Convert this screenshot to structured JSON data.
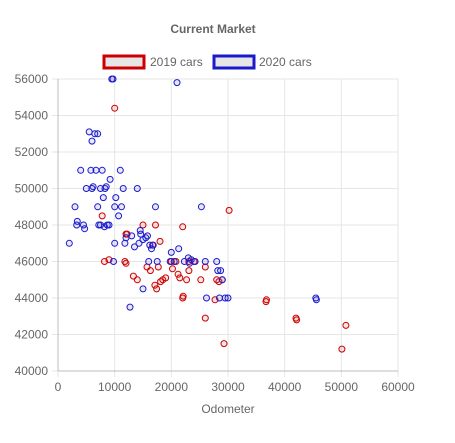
{
  "chart_data": {
    "type": "scatter",
    "title": "Current Market",
    "xlabel": "Odometer",
    "ylabel": "",
    "xlim": [
      0,
      60000
    ],
    "ylim": [
      40000,
      56000
    ],
    "xticks": [
      0,
      10000,
      20000,
      30000,
      40000,
      50000,
      60000
    ],
    "yticks": [
      40000,
      42000,
      44000,
      46000,
      48000,
      50000,
      52000,
      54000,
      56000
    ],
    "grid": true,
    "legend_position": "top",
    "series": [
      {
        "name": "2019 cars",
        "color": "#cc0000",
        "fill": "rgba(204,0,0,0.1)",
        "points": [
          [
            7800,
            48500
          ],
          [
            8200,
            46000
          ],
          [
            9000,
            46100
          ],
          [
            10000,
            54400
          ],
          [
            11800,
            46000
          ],
          [
            12000,
            45900
          ],
          [
            12000,
            47500
          ],
          [
            12200,
            47500
          ],
          [
            13300,
            45200
          ],
          [
            14000,
            45000
          ],
          [
            15000,
            48000
          ],
          [
            15700,
            45700
          ],
          [
            16300,
            45500
          ],
          [
            16700,
            46900
          ],
          [
            17100,
            44700
          ],
          [
            17400,
            44500
          ],
          [
            17200,
            48000
          ],
          [
            17700,
            45700
          ],
          [
            18000,
            47100
          ],
          [
            18100,
            44900
          ],
          [
            18500,
            45000
          ],
          [
            19000,
            45100
          ],
          [
            20000,
            46000
          ],
          [
            20200,
            45600
          ],
          [
            20800,
            46000
          ],
          [
            21200,
            45300
          ],
          [
            21500,
            45100
          ],
          [
            22000,
            47900
          ],
          [
            22000,
            44000
          ],
          [
            22100,
            44100
          ],
          [
            22700,
            45000
          ],
          [
            23100,
            45500
          ],
          [
            23100,
            46000
          ],
          [
            24000,
            46000
          ],
          [
            25200,
            45000
          ],
          [
            26000,
            45700
          ],
          [
            26000,
            42900
          ],
          [
            27700,
            43900
          ],
          [
            28000,
            45000
          ],
          [
            28400,
            44900
          ],
          [
            29000,
            45000
          ],
          [
            29300,
            41500
          ],
          [
            30200,
            48800
          ],
          [
            36700,
            43800
          ],
          [
            36800,
            43900
          ],
          [
            42000,
            42900
          ],
          [
            42100,
            42800
          ],
          [
            50100,
            41200
          ],
          [
            50800,
            42500
          ]
        ]
      },
      {
        "name": "2020 cars",
        "color": "#1a1acc",
        "fill": "rgba(26,26,204,0.1)",
        "points": [
          [
            2000,
            47000
          ],
          [
            3000,
            49000
          ],
          [
            3300,
            48000
          ],
          [
            3400,
            48200
          ],
          [
            4000,
            51000
          ],
          [
            4500,
            48000
          ],
          [
            4700,
            47800
          ],
          [
            5000,
            50000
          ],
          [
            5500,
            53100
          ],
          [
            5800,
            51000
          ],
          [
            6000,
            52600
          ],
          [
            6000,
            50000
          ],
          [
            6200,
            50100
          ],
          [
            6500,
            53000
          ],
          [
            6700,
            51000
          ],
          [
            7000,
            53000
          ],
          [
            7000,
            49000
          ],
          [
            7200,
            48000
          ],
          [
            7500,
            50000
          ],
          [
            7800,
            51000
          ],
          [
            7500,
            48000
          ],
          [
            8000,
            49500
          ],
          [
            8200,
            47900
          ],
          [
            8300,
            50000
          ],
          [
            8500,
            50100
          ],
          [
            8700,
            48000
          ],
          [
            9000,
            48000
          ],
          [
            9200,
            50500
          ],
          [
            9500,
            56000
          ],
          [
            9700,
            56000
          ],
          [
            9800,
            46000
          ],
          [
            10000,
            49000
          ],
          [
            10000,
            47000
          ],
          [
            10200,
            49500
          ],
          [
            10700,
            48500
          ],
          [
            11000,
            51000
          ],
          [
            11200,
            49000
          ],
          [
            11500,
            50000
          ],
          [
            11800,
            47000
          ],
          [
            12000,
            47300
          ],
          [
            12700,
            43500
          ],
          [
            13000,
            47400
          ],
          [
            13500,
            46800
          ],
          [
            14000,
            50000
          ],
          [
            14300,
            47000
          ],
          [
            14500,
            47700
          ],
          [
            14600,
            47500
          ],
          [
            15000,
            47200
          ],
          [
            15000,
            44500
          ],
          [
            15500,
            47300
          ],
          [
            15800,
            47400
          ],
          [
            16000,
            46000
          ],
          [
            16200,
            46900
          ],
          [
            16500,
            46700
          ],
          [
            16800,
            46900
          ],
          [
            17200,
            49000
          ],
          [
            17500,
            46000
          ],
          [
            19800,
            46000
          ],
          [
            20000,
            46500
          ],
          [
            20500,
            46000
          ],
          [
            21000,
            55800
          ],
          [
            21300,
            46700
          ],
          [
            22300,
            46000
          ],
          [
            23000,
            46200
          ],
          [
            23200,
            45900
          ],
          [
            23500,
            46100
          ],
          [
            24200,
            46000
          ],
          [
            25300,
            49000
          ],
          [
            26000,
            46000
          ],
          [
            26200,
            44000
          ],
          [
            28000,
            46000
          ],
          [
            28200,
            45500
          ],
          [
            28500,
            44000
          ],
          [
            28700,
            45500
          ],
          [
            29000,
            45000
          ],
          [
            29500,
            44000
          ],
          [
            30000,
            44000
          ],
          [
            45500,
            44000
          ],
          [
            45600,
            43900
          ]
        ]
      }
    ]
  }
}
